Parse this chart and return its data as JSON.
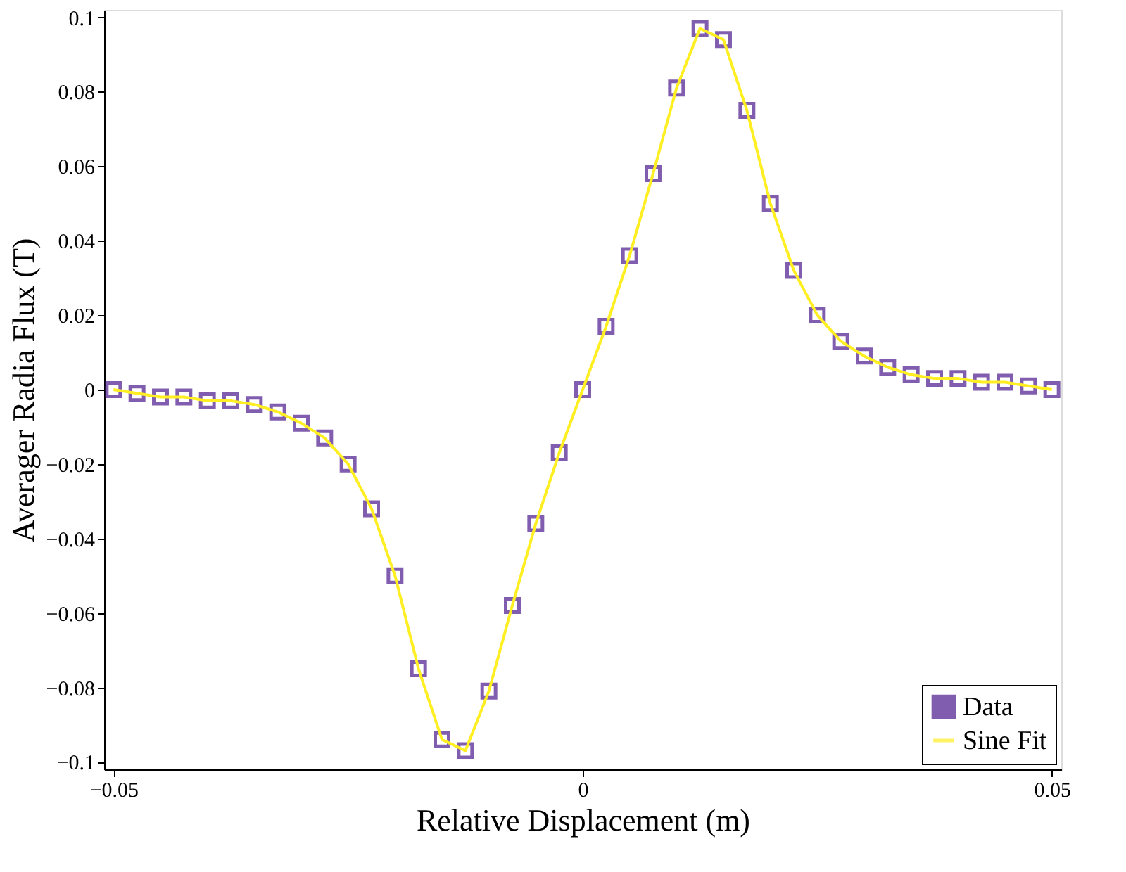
{
  "chart_data": {
    "type": "line",
    "xlabel": "Relative Displacement (m)",
    "ylabel": "Averager Radia Flux (T)",
    "x": [
      -0.05,
      -0.0475,
      -0.045,
      -0.0425,
      -0.04,
      -0.0375,
      -0.035,
      -0.0325,
      -0.03,
      -0.0275,
      -0.025,
      -0.0225,
      -0.02,
      -0.0175,
      -0.015,
      -0.0125,
      -0.01,
      -0.0075,
      -0.005,
      -0.0025,
      0,
      0.0025,
      0.005,
      0.0075,
      0.01,
      0.0125,
      0.015,
      0.0175,
      0.02,
      0.0225,
      0.025,
      0.0275,
      0.03,
      0.0325,
      0.035,
      0.0375,
      0.04,
      0.0425,
      0.045,
      0.0475,
      0.05
    ],
    "series": [
      {
        "name": "Data",
        "type": "scatter",
        "marker": "square",
        "color": "#4b1a8c",
        "values": [
          0,
          -0.001,
          -0.002,
          -0.002,
          -0.003,
          -0.003,
          -0.004,
          -0.006,
          -0.009,
          -0.013,
          -0.02,
          -0.032,
          -0.05,
          -0.075,
          -0.094,
          -0.097,
          -0.081,
          -0.058,
          -0.036,
          -0.017,
          0,
          0.017,
          0.036,
          0.058,
          0.081,
          0.097,
          0.094,
          0.075,
          0.05,
          0.032,
          0.02,
          0.013,
          0.009,
          0.006,
          0.004,
          0.003,
          0.003,
          0.002,
          0.002,
          0.001,
          0
        ]
      },
      {
        "name": "Sine Fit",
        "marker": "none",
        "line_style": "solid",
        "color": "#ffee22",
        "values": [
          0,
          -0.001,
          -0.002,
          -0.002,
          -0.003,
          -0.003,
          -0.004,
          -0.006,
          -0.009,
          -0.013,
          -0.02,
          -0.032,
          -0.05,
          -0.075,
          -0.094,
          -0.097,
          -0.081,
          -0.058,
          -0.036,
          -0.017,
          0,
          0.017,
          0.036,
          0.058,
          0.081,
          0.097,
          0.094,
          0.075,
          0.05,
          0.032,
          0.02,
          0.013,
          0.009,
          0.006,
          0.004,
          0.003,
          0.003,
          0.002,
          0.002,
          0.001,
          0
        ]
      }
    ],
    "xlim": [
      -0.051,
      0.051
    ],
    "xticks": [
      -0.05,
      0,
      0.05
    ],
    "ylim": [
      -0.102,
      0.102
    ],
    "yticks": [
      -0.1,
      -0.08,
      -0.06,
      -0.04,
      -0.02,
      0,
      0.02,
      0.04,
      0.06,
      0.08,
      0.1
    ],
    "grid": false,
    "legend": "bottom right"
  }
}
